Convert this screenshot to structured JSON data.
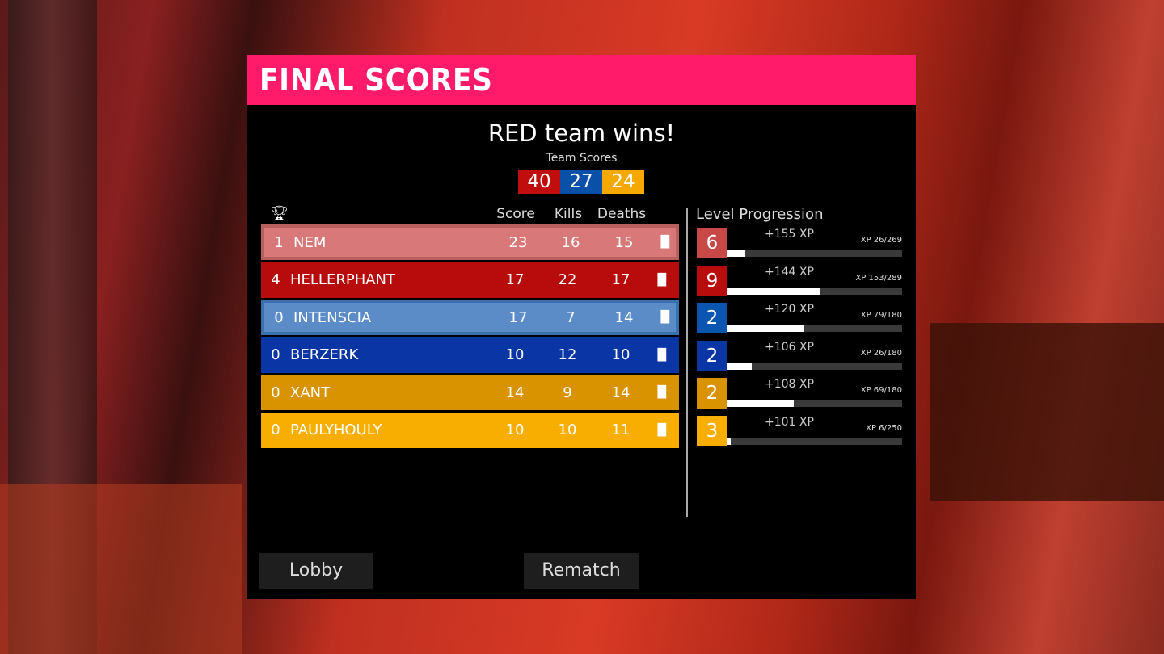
{
  "header": {
    "title": "FINAL SCORES"
  },
  "result": "RED team wins!",
  "team_scores": {
    "label": "Team Scores",
    "teams": [
      {
        "value": "40",
        "color": "#c00d0d"
      },
      {
        "value": "27",
        "color": "#0a4fa8"
      },
      {
        "value": "24",
        "color": "#f5a800"
      }
    ]
  },
  "columns": {
    "score": "Score",
    "kills": "Kills",
    "deaths": "Deaths"
  },
  "players": [
    {
      "rank": "1",
      "name": "NEM",
      "score": "23",
      "kills": "16",
      "deaths": "15",
      "color": "#d87878"
    },
    {
      "rank": "4",
      "name": "HELLERPHANT",
      "score": "17",
      "kills": "22",
      "deaths": "17",
      "color": "#b80b0b"
    },
    {
      "rank": "0",
      "name": "INTENSCIA",
      "score": "17",
      "kills": "7",
      "deaths": "14",
      "color": "#5b8cc8"
    },
    {
      "rank": "0",
      "name": "BERZERK",
      "score": "10",
      "kills": "12",
      "deaths": "10",
      "color": "#0a35a5"
    },
    {
      "rank": "0",
      "name": "XANT",
      "score": "14",
      "kills": "9",
      "deaths": "14",
      "color": "#d99200"
    },
    {
      "rank": "0",
      "name": "PAULYHOULY",
      "score": "10",
      "kills": "10",
      "deaths": "11",
      "color": "#f7ae00"
    }
  ],
  "level_progression": {
    "title": "Level Progression",
    "entries": [
      {
        "level": "6",
        "gain": "+155 XP",
        "xp": "XP 26/269",
        "progress": 0.1,
        "color": "#c84848"
      },
      {
        "level": "9",
        "gain": "+144 XP",
        "xp": "XP 153/289",
        "progress": 0.53,
        "color": "#b80b0b"
      },
      {
        "level": "2",
        "gain": "+120 XP",
        "xp": "XP 79/180",
        "progress": 0.44,
        "color": "#0a55b0"
      },
      {
        "level": "2",
        "gain": "+106 XP",
        "xp": "XP 26/180",
        "progress": 0.14,
        "color": "#0a35a5"
      },
      {
        "level": "2",
        "gain": "+108 XP",
        "xp": "XP 69/180",
        "progress": 0.38,
        "color": "#d99200"
      },
      {
        "level": "3",
        "gain": "+101 XP",
        "xp": "XP 6/250",
        "progress": 0.02,
        "color": "#f7ae00"
      }
    ]
  },
  "buttons": {
    "lobby": "Lobby",
    "rematch": "Rematch"
  }
}
